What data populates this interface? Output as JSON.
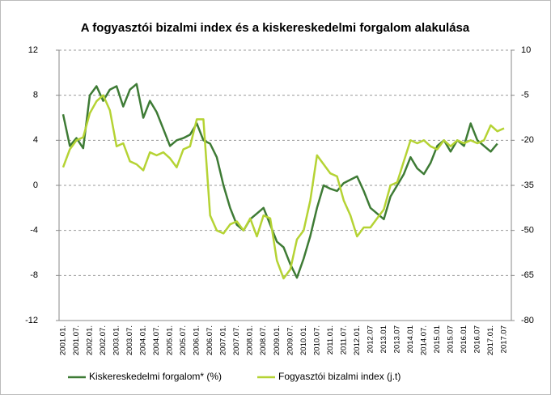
{
  "chart_data": {
    "type": "line",
    "title": "A fogyasztói bizalmi index és a kiskereskedelmi forgalom alakulása",
    "categories": [
      "2001.01.",
      null,
      "2001.07.",
      null,
      "2002.01.",
      null,
      "2002.07.",
      null,
      "2003.01.",
      null,
      "2003.07.",
      null,
      "2004.01.",
      null,
      "2004.07.",
      null,
      "2005.01.",
      null,
      "2005.07.",
      null,
      "2006.01.",
      null,
      "2006.07.",
      null,
      "2007.01.",
      null,
      "2007.07.",
      null,
      "2008.01.",
      null,
      "2008.07.",
      null,
      "2009.01.",
      null,
      "2009.07.",
      null,
      "2010.01.",
      null,
      "2010.07.",
      null,
      "2011.01.",
      null,
      "2011.07.",
      null,
      "2012.01.",
      null,
      "2012.07",
      null,
      "2013.01",
      null,
      "2013.07",
      null,
      "2014.01",
      null,
      "2014.07.",
      null,
      "2015.01",
      null,
      "2015.07",
      null,
      "2016.01",
      null,
      "2016.07",
      null,
      "2017.01.",
      null,
      "2017.07"
    ],
    "series": [
      {
        "name": "Kiskereskedelmi forgalom* (%)",
        "color": "#3e7b35",
        "axis": "y",
        "values": [
          6.3,
          3.5,
          4.2,
          3.3,
          8.0,
          8.8,
          7.5,
          8.5,
          8.8,
          7.0,
          8.5,
          9.0,
          6.0,
          7.5,
          6.5,
          5.0,
          3.5,
          4.0,
          4.2,
          4.5,
          5.5,
          4.0,
          3.7,
          2.5,
          0.0,
          -2.0,
          -3.5,
          -4.0,
          -3.0,
          -2.5,
          -2.0,
          -3.5,
          -5.0,
          -5.5,
          -7.0,
          -8.2,
          -6.5,
          -4.5,
          -2.0,
          0.0,
          -0.3,
          -0.5,
          0.2,
          0.5,
          0.8,
          -0.5,
          -2.0,
          -2.5,
          -3.0,
          -1.0,
          0.0,
          1.0,
          2.5,
          1.5,
          1.0,
          2.0,
          3.5,
          4.0,
          3.0,
          4.0,
          3.5,
          5.5,
          4.0,
          3.5,
          3.0,
          3.7,
          null
        ]
      },
      {
        "name": "Fogyasztói bizalmi index (j.t)",
        "color": "#b5d334",
        "axis": "y2",
        "values": [
          -29,
          -23,
          -20,
          -19,
          -11,
          -7,
          -5,
          -10,
          -22,
          -21,
          -27,
          -28,
          -30,
          -24,
          -25,
          -24,
          -26,
          -29,
          -23,
          -22,
          -13,
          -13,
          -45,
          -50,
          -51,
          -48,
          -47,
          -50,
          -46,
          -52,
          -45,
          -46,
          -60,
          -66,
          -63,
          -53,
          -50,
          -40,
          -25,
          -28,
          -31,
          -32,
          -40,
          -45,
          -52,
          -49,
          -49,
          -46,
          -43,
          -35,
          -34,
          -27,
          -20,
          -21,
          -20,
          -22,
          -23,
          -20,
          -22,
          -20,
          -21,
          -20,
          -21,
          -20,
          -15,
          -17,
          -16
        ]
      }
    ],
    "ylim": [
      -12,
      12
    ],
    "yticks": [
      -12,
      -8,
      -4,
      0,
      4,
      8,
      12
    ],
    "y2lim": [
      -80,
      10
    ],
    "y2ticks": [
      -80,
      -65,
      -50,
      -35,
      -20,
      -5,
      10
    ],
    "grid": true
  }
}
